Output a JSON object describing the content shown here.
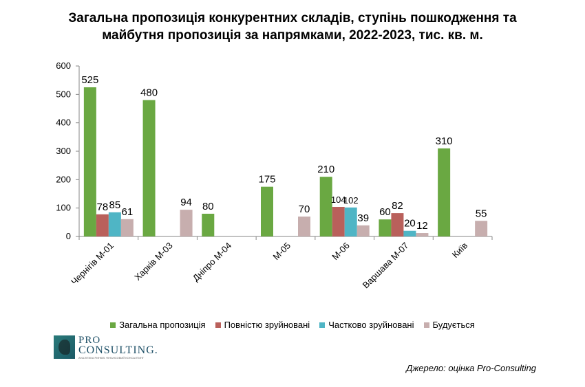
{
  "title_line1": "Загальна пропозиція конкурентних складів, ступінь пошкодження та",
  "title_line2": "майбутня пропозиція за напрямками, 2022-2023, тис. кв. м.",
  "chart_data": {
    "type": "bar",
    "title": "Загальна пропозиція конкурентних складів, ступінь пошкодження та майбутня пропозиція за напрямками, 2022-2023, тис. кв. м.",
    "categories": [
      "Чернігів  М-01",
      "Харків М-03",
      "Дніпро М-04",
      "М-05",
      "М-06",
      "Варшава М-07",
      "Київ"
    ],
    "series": [
      {
        "name": "Загальна  пропозиція",
        "color": "#6aa842",
        "values": [
          525,
          480,
          80,
          null,
          210,
          60,
          310
        ]
      },
      {
        "name": "Повністю  зруйновані",
        "color": "#b9605b",
        "values": [
          78,
          null,
          null,
          null,
          104,
          82,
          null
        ]
      },
      {
        "name": "Частково  зруйновані",
        "color": "#4fb5c5",
        "values": [
          85,
          null,
          null,
          null,
          102,
          20,
          null
        ]
      },
      {
        "name": "Будується",
        "color": "#c7aeae",
        "values": [
          61,
          94,
          null,
          70,
          39,
          12,
          55
        ]
      }
    ],
    "data_labels": [
      [
        "525",
        "480",
        "80",
        "",
        "210",
        "60",
        "310"
      ],
      [
        "78",
        "",
        "",
        "",
        "104",
        "82",
        ""
      ],
      [
        "85",
        "",
        "",
        "",
        "102",
        "20",
        ""
      ],
      [
        "61",
        "94",
        "",
        "70",
        "39",
        "12",
        "55"
      ]
    ],
    "m05_general": 175,
    "y_ticks": [
      0,
      100,
      200,
      300,
      400,
      500,
      600
    ],
    "ylim": [
      0,
      600
    ],
    "grid": false,
    "legend_position": "bottom"
  },
  "source_text": "Джерело: оцінка Pro-Consulting",
  "logo": {
    "pro": "PRO",
    "consulting": "CONSULTING.",
    "tagline": "АНАЛІТИКА РИНКІВ. ФІНАНСОВИЙ КОНСАЛТИНГ"
  }
}
